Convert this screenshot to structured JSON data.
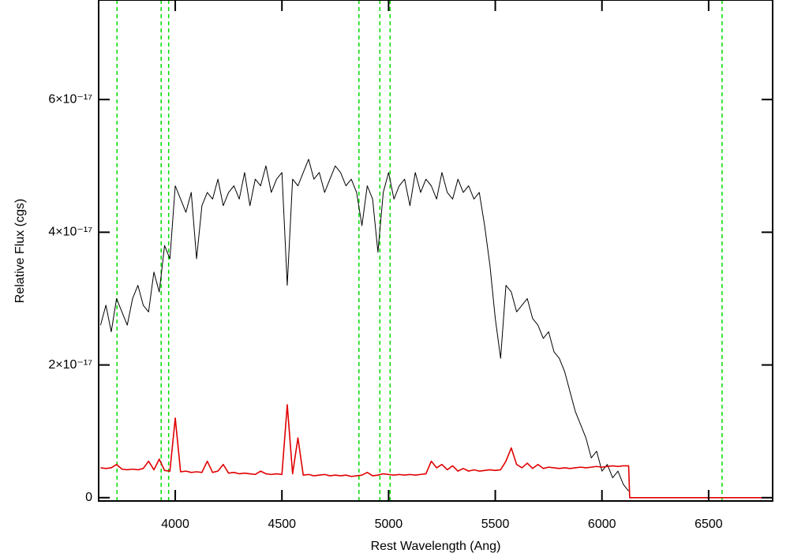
{
  "chart_data": {
    "type": "line",
    "x_label": "Rest Wavelength (Ang)",
    "y_label": "Relative Flux (cgs)",
    "xlim": [
      3641,
      6800
    ],
    "ylim": [
      -5e-19,
      7.5e-17
    ],
    "xticks": [
      4000,
      4500,
      5000,
      5500,
      6000,
      6500
    ],
    "yticks": [
      0,
      {
        "value": 2e-17,
        "label": "2×10⁻¹⁷"
      },
      {
        "value": 4e-17,
        "label": "4×10⁻¹⁷"
      },
      {
        "value": 6e-17,
        "label": "6×10⁻¹⁷"
      }
    ],
    "vlines": [
      3727,
      3934,
      3969,
      4861,
      4959,
      5007,
      6563
    ],
    "vline_color": "#00dd00",
    "x": [
      3650,
      3675,
      3700,
      3725,
      3750,
      3775,
      3800,
      3825,
      3850,
      3875,
      3900,
      3925,
      3950,
      3975,
      4000,
      4025,
      4050,
      4075,
      4100,
      4125,
      4150,
      4175,
      4200,
      4225,
      4250,
      4275,
      4300,
      4325,
      4350,
      4375,
      4400,
      4425,
      4450,
      4475,
      4500,
      4525,
      4550,
      4575,
      4600,
      4625,
      4650,
      4675,
      4700,
      4725,
      4750,
      4775,
      4800,
      4825,
      4850,
      4875,
      4900,
      4925,
      4950,
      4975,
      5000,
      5025,
      5050,
      5075,
      5100,
      5125,
      5150,
      5175,
      5200,
      5225,
      5250,
      5275,
      5300,
      5325,
      5350,
      5375,
      5400,
      5425,
      5450,
      5475,
      5500,
      5525,
      5550,
      5575,
      5600,
      5625,
      5650,
      5675,
      5700,
      5725,
      5750,
      5775,
      5800,
      5825,
      5850,
      5875,
      5900,
      5925,
      5950,
      5975,
      6000,
      6025,
      6050,
      6075,
      6100,
      6125,
      6130,
      6800
    ],
    "series": [
      {
        "color": "#000000",
        "values": [
          2.6e-17,
          2.9e-17,
          2.5e-17,
          3e-17,
          2.8e-17,
          2.6e-17,
          3e-17,
          3.2e-17,
          2.9e-17,
          2.8e-17,
          3.4e-17,
          3.1e-17,
          3.8e-17,
          3.6e-17,
          4.7e-17,
          4.5e-17,
          4.3e-17,
          4.6e-17,
          3.6e-17,
          4.4e-17,
          4.6e-17,
          4.5e-17,
          4.8e-17,
          4.4e-17,
          4.6e-17,
          4.7e-17,
          4.5e-17,
          4.9e-17,
          4.4e-17,
          4.8e-17,
          4.7e-17,
          5e-17,
          4.6e-17,
          4.8e-17,
          4.9e-17,
          3.2e-17,
          4.8e-17,
          4.7e-17,
          4.9e-17,
          5.1e-17,
          4.8e-17,
          4.9e-17,
          4.6e-17,
          4.8e-17,
          5e-17,
          4.9e-17,
          4.7e-17,
          4.8e-17,
          4.6e-17,
          4.1e-17,
          4.7e-17,
          4.5e-17,
          3.7e-17,
          4.6e-17,
          4.9e-17,
          4.5e-17,
          4.7e-17,
          4.8e-17,
          4.4e-17,
          4.9e-17,
          4.6e-17,
          4.8e-17,
          4.7e-17,
          4.5e-17,
          4.9e-17,
          4.6e-17,
          4.5e-17,
          4.8e-17,
          4.6e-17,
          4.7e-17,
          4.5e-17,
          4.6e-17,
          4.1e-17,
          3.5e-17,
          2.7e-17,
          2.1e-17,
          3.2e-17,
          3.1e-17,
          2.8e-17,
          2.9e-17,
          3e-17,
          2.7e-17,
          2.6e-17,
          2.4e-17,
          2.5e-17,
          2.2e-17,
          2.1e-17,
          1.9e-17,
          1.6e-17,
          1.3e-17,
          1.1e-17,
          9e-18,
          6e-18,
          7e-18,
          4e-18,
          5e-18,
          3e-18,
          4e-18,
          2e-18,
          1e-18,
          null,
          null
        ]
      },
      {
        "color": "#e00000",
        "values": [
          4.5e-18,
          4.4e-18,
          4.5e-18,
          5e-18,
          4.3e-18,
          4.2e-18,
          4.3e-18,
          4.2e-18,
          4.4e-18,
          5.5e-18,
          4.2e-18,
          5.8e-18,
          4.1e-18,
          4e-18,
          1.2e-17,
          3.9e-18,
          4e-18,
          3.8e-18,
          3.9e-18,
          3.8e-18,
          5.5e-18,
          3.8e-18,
          4e-18,
          5e-18,
          3.7e-18,
          3.8e-18,
          3.6e-18,
          3.7e-18,
          3.6e-18,
          3.5e-18,
          4e-18,
          3.6e-18,
          3.5e-18,
          3.6e-18,
          3.5e-18,
          1.4e-17,
          3.6e-18,
          9e-18,
          3.4e-18,
          3.5e-18,
          3.3e-18,
          3.4e-18,
          3.5e-18,
          3.3e-18,
          3.4e-18,
          3.3e-18,
          3.4e-18,
          3.2e-18,
          3.3e-18,
          3.4e-18,
          3.8e-18,
          3.3e-18,
          3.4e-18,
          3.6e-18,
          3.5e-18,
          3.4e-18,
          3.5e-18,
          3.4e-18,
          3.5e-18,
          3.4e-18,
          3.5e-18,
          3.6e-18,
          5.5e-18,
          4.5e-18,
          5e-18,
          4.2e-18,
          4.8e-18,
          4e-18,
          4.4e-18,
          4e-18,
          4.2e-18,
          4e-18,
          4.1e-18,
          4.2e-18,
          4.1e-18,
          4.2e-18,
          5.5e-18,
          7.5e-18,
          5e-18,
          4.5e-18,
          5.2e-18,
          4.4e-18,
          5e-18,
          4.4e-18,
          4.6e-18,
          4.5e-18,
          4.4e-18,
          4.5e-18,
          4.4e-18,
          4.5e-18,
          4.6e-18,
          4.5e-18,
          4.6e-18,
          4.7e-18,
          4.6e-18,
          4.7e-18,
          4.8e-18,
          4.7e-18,
          4.8e-18,
          4.8e-18,
          0,
          0
        ]
      }
    ]
  }
}
